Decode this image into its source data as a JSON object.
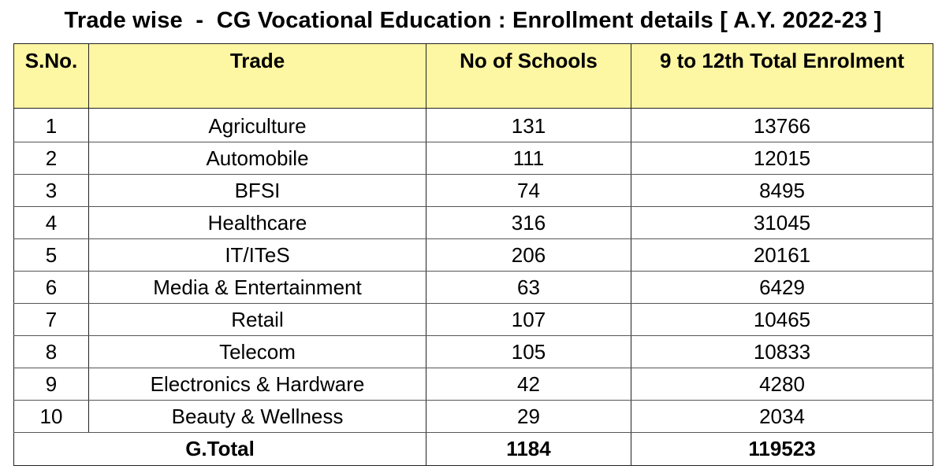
{
  "title": "Trade wise  -  CG Vocational Education : Enrollment details [ A.Y. 2022-23 ]",
  "colors": {
    "header_bg": "#fdf6a3",
    "border": "#222222"
  },
  "headers": [
    "S.No.",
    "Trade",
    "No of Schools",
    "9 to 12th Total Enrolment"
  ],
  "rows": [
    [
      "1",
      "Agriculture",
      "131",
      "13766"
    ],
    [
      "2",
      "Automobile",
      "111",
      "12015"
    ],
    [
      "3",
      "BFSI",
      "74",
      "8495"
    ],
    [
      "4",
      "Healthcare",
      "316",
      "31045"
    ],
    [
      "5",
      "IT/ITeS",
      "206",
      "20161"
    ],
    [
      "6",
      "Media & Entertainment",
      "63",
      "6429"
    ],
    [
      "7",
      "Retail",
      "107",
      "10465"
    ],
    [
      "8",
      "Telecom",
      "105",
      "10833"
    ],
    [
      "9",
      "Electronics & Hardware",
      "42",
      "4280"
    ],
    [
      "10",
      "Beauty & Wellness",
      "29",
      "2034"
    ]
  ],
  "total": {
    "label": "G.Total",
    "schools": "1184",
    "enrolment": "119523"
  }
}
